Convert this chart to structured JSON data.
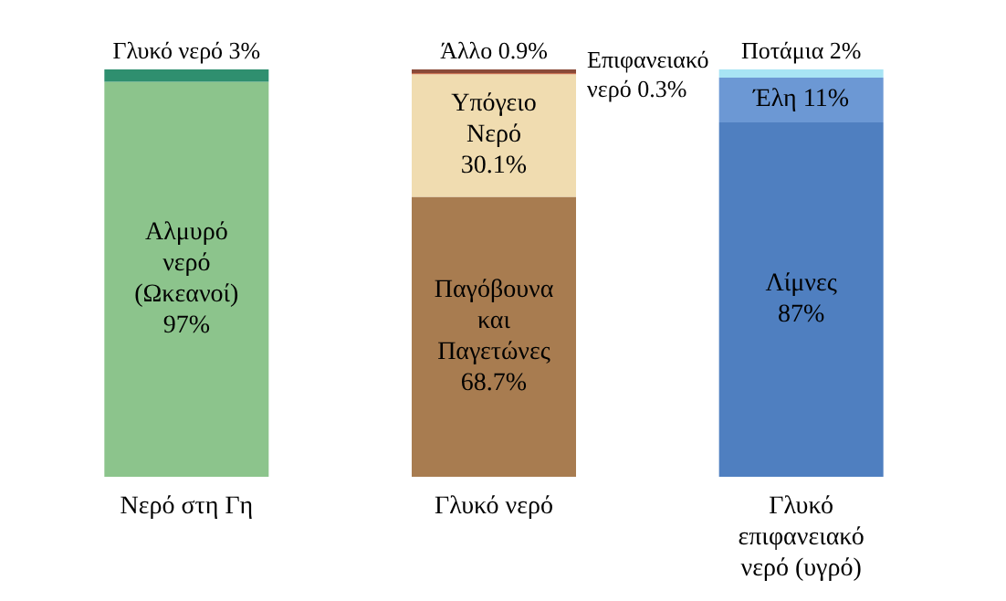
{
  "chart_data": {
    "type": "bar",
    "stacked": true,
    "legend": false,
    "grid": false,
    "categories": [
      "Νερό στη Γη",
      "Γλυκό νερό",
      "Γλυκό επιφανειακό νερό (υγρό)"
    ],
    "series": [
      {
        "name": "Αλμυρό νερό (Ωκεανοί)",
        "color": "#8cc48c",
        "values": [
          97,
          null,
          null
        ],
        "value_labels": [
          "97%",
          null,
          null
        ]
      },
      {
        "name": "Γλυκό νερό",
        "color": "#2f8f6f",
        "values": [
          3,
          null,
          null
        ],
        "value_labels": [
          "3%",
          null,
          null
        ]
      },
      {
        "name": "Παγόβουνα και Παγετώνες",
        "color": "#a87c50",
        "values": [
          null,
          68.7,
          null
        ],
        "value_labels": [
          null,
          "68.7%",
          null
        ]
      },
      {
        "name": "Υπόγειο Νερό",
        "color": "#f0dcb0",
        "values": [
          null,
          30.1,
          null
        ],
        "value_labels": [
          null,
          "30.1%",
          null
        ]
      },
      {
        "name": "Επιφανειακό νερό",
        "color": "#c87050",
        "values": [
          null,
          0.3,
          null
        ],
        "value_labels": [
          null,
          "0.3%",
          null
        ]
      },
      {
        "name": "Άλλο",
        "color": "#8a4a38",
        "values": [
          null,
          0.9,
          null
        ],
        "value_labels": [
          null,
          "0.9%",
          null
        ]
      },
      {
        "name": "Λίμνες",
        "color": "#4f7fc0",
        "values": [
          null,
          null,
          87
        ],
        "value_labels": [
          null,
          null,
          "87%"
        ]
      },
      {
        "name": "Έλη",
        "color": "#6c98d4",
        "values": [
          null,
          null,
          11
        ],
        "value_labels": [
          null,
          null,
          "11%"
        ]
      },
      {
        "name": "Ποτάμια",
        "color": "#a8e4f4",
        "values": [
          null,
          null,
          2
        ],
        "value_labels": [
          null,
          null,
          "2%"
        ]
      }
    ]
  }
}
